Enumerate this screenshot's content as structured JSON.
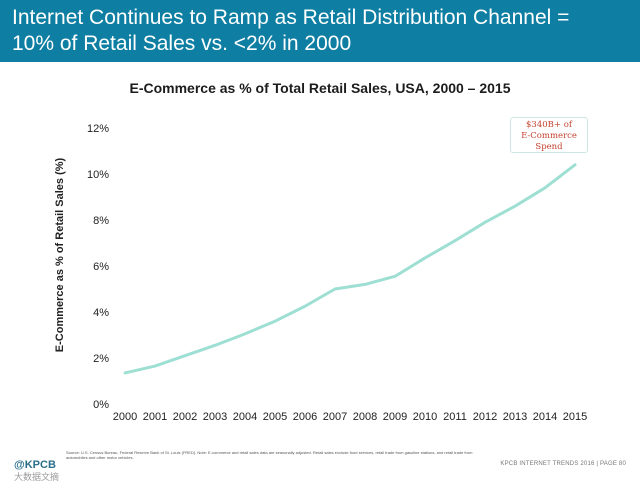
{
  "slide": {
    "title_line1": "Internet Continues to Ramp as Retail Distribution Channel =",
    "title_line2": "10% of Retail Sales vs. <2% in 2000",
    "header_color": "#0f7ea3"
  },
  "annotation": {
    "line1": "$340B+ of",
    "line2": "E-Commerce",
    "line3": "Spend",
    "color": "#c4432f"
  },
  "source_note": "Source: U.S. Census Bureau, Federal Reserve Bank of St. Louis (FRED). Note: E-commerce and retail sales data are seasonally adjusted. Retail sales exclude food services, retail trade from gasoline stations, and retail trade from automobiles and other motor vehicles.",
  "footer": {
    "logo": "@KPCB",
    "watermark": "大数据文摘",
    "page": "KPCB INTERNET TRENDS 2016  |  PAGE 80"
  },
  "chart_data": {
    "type": "line",
    "title": "E-Commerce as % of Total Retail Sales, USA, 2000 – 2015",
    "xlabel": "",
    "ylabel": "E-Commerce as % of Retail Sales (%)",
    "ylim": [
      0,
      12
    ],
    "yticks": [
      "0%",
      "2%",
      "4%",
      "6%",
      "8%",
      "10%",
      "12%"
    ],
    "categories": [
      "2000",
      "2001",
      "2002",
      "2003",
      "2004",
      "2005",
      "2006",
      "2007",
      "2008",
      "2009",
      "2010",
      "2011",
      "2012",
      "2013",
      "2014",
      "2015"
    ],
    "series": [
      {
        "values": [
          1.35,
          1.65,
          2.1,
          2.55,
          3.05,
          3.6,
          4.25,
          5.0,
          5.2,
          5.55,
          6.35,
          7.1,
          7.9,
          8.6,
          9.4,
          10.4
        ],
        "color": "#9edfd3"
      }
    ],
    "grid": true,
    "legend": "none"
  }
}
